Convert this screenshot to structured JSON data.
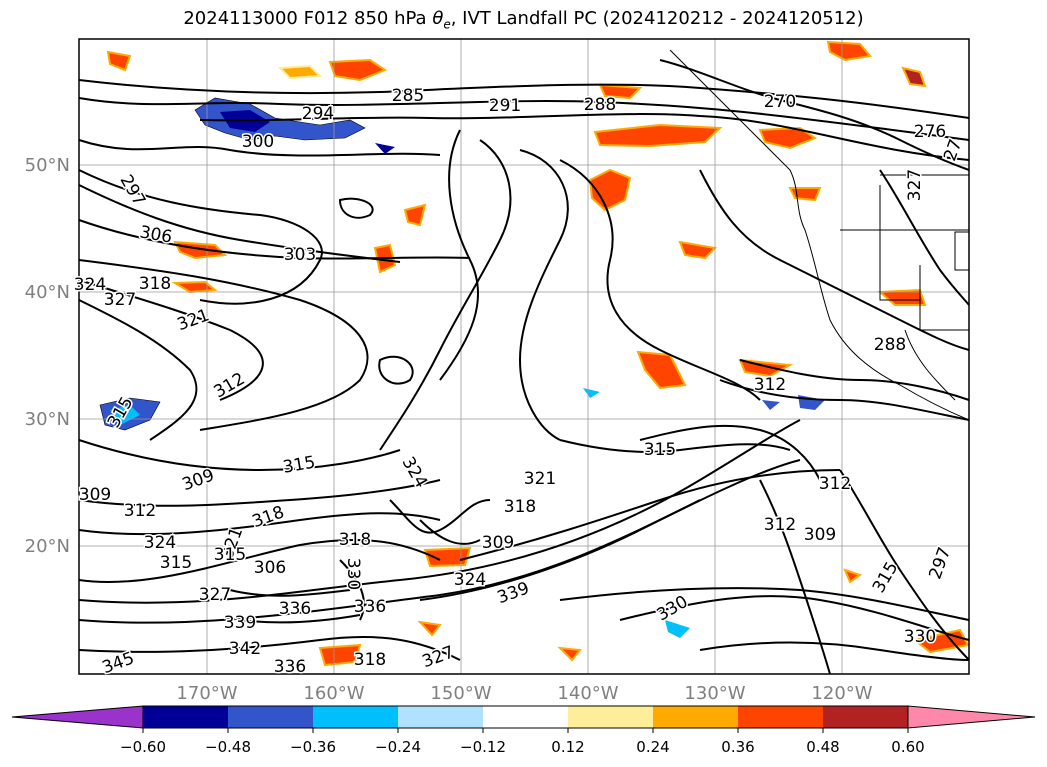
{
  "title": {
    "prefix": "2024113000 F012 850 hPa ",
    "theta": "θ",
    "theta_sub": "e",
    "suffix": ", IVT Landfall PC (2024120212 - 2024120512)"
  },
  "axes": {
    "lon_labels": [
      "170°W",
      "160°W",
      "150°W",
      "140°W",
      "130°W",
      "120°W"
    ],
    "lat_labels": [
      "50°N",
      "40°N",
      "30°N",
      "20°N"
    ]
  },
  "colorbar": {
    "ticks": [
      "−0.60",
      "−0.48",
      "−0.36",
      "−0.24",
      "−0.12",
      "0.12",
      "0.24",
      "0.36",
      "0.48",
      "0.60"
    ],
    "colors": [
      "#9933cc",
      "#000099",
      "#3355cc",
      "#00bfff",
      "#b0e2ff",
      "#ffffff",
      "#ffee99",
      "#ffaa00",
      "#ff4400",
      "#b22222",
      "#ff88aa"
    ]
  },
  "contour_labels": [
    "285",
    "291",
    "288",
    "294",
    "300",
    "270",
    "276",
    "27",
    "297",
    "306",
    "303",
    "324",
    "327",
    "318",
    "321",
    "312",
    "315",
    "309",
    "315",
    "318",
    "321",
    "318",
    "315",
    "309",
    "312",
    "324",
    "315",
    "306",
    "309",
    "318",
    "330",
    "324",
    "327",
    "336",
    "339",
    "342",
    "318",
    "327",
    "336",
    "339",
    "330",
    "330",
    "345",
    "336",
    "315",
    "312",
    "309",
    "312",
    "315",
    "297",
    "288",
    "327",
    "312",
    "321",
    "324"
  ]
}
